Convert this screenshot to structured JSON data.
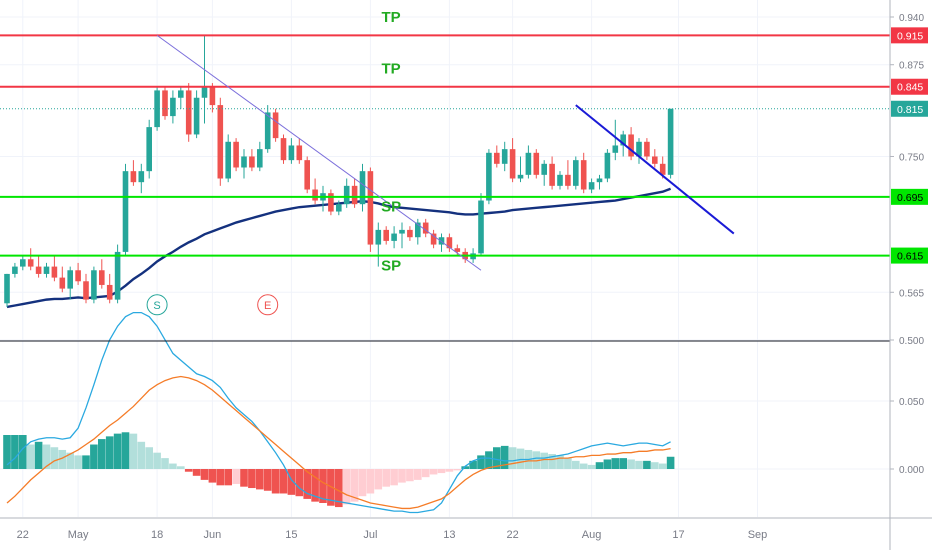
{
  "chart_data": [
    {
      "type": "candlestick",
      "title": "",
      "ylim": [
        0.5,
        0.95
      ],
      "y_ticks": [
        "0.940",
        "0.875",
        "0.750",
        "0.565",
        "0.500"
      ],
      "last_price": "0.815",
      "candles": [
        [
          0.55,
          0.59,
          0.545,
          0.59
        ],
        [
          0.59,
          0.605,
          0.585,
          0.6
        ],
        [
          0.6,
          0.615,
          0.595,
          0.61
        ],
        [
          0.61,
          0.625,
          0.595,
          0.6
        ],
        [
          0.6,
          0.615,
          0.585,
          0.59
        ],
        [
          0.59,
          0.605,
          0.585,
          0.6
        ],
        [
          0.6,
          0.615,
          0.58,
          0.585
        ],
        [
          0.585,
          0.6,
          0.565,
          0.57
        ],
        [
          0.57,
          0.6,
          0.555,
          0.595
        ],
        [
          0.595,
          0.605,
          0.575,
          0.58
        ],
        [
          0.58,
          0.59,
          0.55,
          0.555
        ],
        [
          0.555,
          0.6,
          0.55,
          0.595
        ],
        [
          0.595,
          0.61,
          0.57,
          0.575
        ],
        [
          0.575,
          0.59,
          0.55,
          0.555
        ],
        [
          0.555,
          0.63,
          0.55,
          0.62
        ],
        [
          0.62,
          0.74,
          0.615,
          0.73
        ],
        [
          0.73,
          0.745,
          0.71,
          0.715
        ],
        [
          0.715,
          0.74,
          0.7,
          0.73
        ],
        [
          0.73,
          0.8,
          0.72,
          0.79
        ],
        [
          0.79,
          0.845,
          0.785,
          0.84
        ],
        [
          0.84,
          0.845,
          0.8,
          0.805
        ],
        [
          0.805,
          0.84,
          0.795,
          0.83
        ],
        [
          0.83,
          0.845,
          0.815,
          0.84
        ],
        [
          0.84,
          0.85,
          0.77,
          0.78
        ],
        [
          0.78,
          0.84,
          0.775,
          0.83
        ],
        [
          0.83,
          0.915,
          0.795,
          0.845
        ],
        [
          0.845,
          0.85,
          0.81,
          0.82
        ],
        [
          0.82,
          0.83,
          0.71,
          0.72
        ],
        [
          0.72,
          0.78,
          0.715,
          0.77
        ],
        [
          0.77,
          0.775,
          0.73,
          0.735
        ],
        [
          0.735,
          0.76,
          0.72,
          0.75
        ],
        [
          0.75,
          0.76,
          0.73,
          0.735
        ],
        [
          0.735,
          0.77,
          0.73,
          0.76
        ],
        [
          0.76,
          0.82,
          0.755,
          0.81
        ],
        [
          0.81,
          0.815,
          0.77,
          0.775
        ],
        [
          0.775,
          0.78,
          0.74,
          0.745
        ],
        [
          0.745,
          0.775,
          0.74,
          0.765
        ],
        [
          0.765,
          0.775,
          0.74,
          0.745
        ],
        [
          0.745,
          0.75,
          0.7,
          0.705
        ],
        [
          0.705,
          0.72,
          0.685,
          0.69
        ],
        [
          0.69,
          0.71,
          0.675,
          0.7
        ],
        [
          0.7,
          0.705,
          0.67,
          0.675
        ],
        [
          0.675,
          0.69,
          0.67,
          0.685
        ],
        [
          0.685,
          0.72,
          0.68,
          0.71
        ],
        [
          0.71,
          0.72,
          0.68,
          0.685
        ],
        [
          0.685,
          0.74,
          0.675,
          0.73
        ],
        [
          0.73,
          0.735,
          0.62,
          0.63
        ],
        [
          0.63,
          0.66,
          0.6,
          0.65
        ],
        [
          0.65,
          0.655,
          0.63,
          0.635
        ],
        [
          0.635,
          0.655,
          0.625,
          0.645
        ],
        [
          0.645,
          0.66,
          0.625,
          0.65
        ],
        [
          0.65,
          0.655,
          0.635,
          0.64
        ],
        [
          0.64,
          0.665,
          0.63,
          0.66
        ],
        [
          0.66,
          0.665,
          0.64,
          0.645
        ],
        [
          0.645,
          0.65,
          0.625,
          0.63
        ],
        [
          0.63,
          0.645,
          0.62,
          0.64
        ],
        [
          0.64,
          0.645,
          0.62,
          0.625
        ],
        [
          0.625,
          0.63,
          0.615,
          0.62
        ],
        [
          0.62,
          0.625,
          0.605,
          0.61
        ],
        [
          0.61,
          0.625,
          0.605,
          0.618
        ],
        [
          0.618,
          0.7,
          0.615,
          0.69
        ],
        [
          0.69,
          0.76,
          0.685,
          0.755
        ],
        [
          0.755,
          0.765,
          0.735,
          0.74
        ],
        [
          0.74,
          0.77,
          0.73,
          0.76
        ],
        [
          0.76,
          0.775,
          0.715,
          0.72
        ],
        [
          0.72,
          0.75,
          0.715,
          0.725
        ],
        [
          0.725,
          0.765,
          0.72,
          0.755
        ],
        [
          0.755,
          0.76,
          0.72,
          0.725
        ],
        [
          0.725,
          0.745,
          0.71,
          0.74
        ],
        [
          0.74,
          0.75,
          0.705,
          0.71
        ],
        [
          0.71,
          0.73,
          0.705,
          0.725
        ],
        [
          0.725,
          0.745,
          0.705,
          0.71
        ],
        [
          0.71,
          0.75,
          0.705,
          0.745
        ],
        [
          0.745,
          0.755,
          0.7,
          0.705
        ],
        [
          0.705,
          0.72,
          0.7,
          0.715
        ],
        [
          0.715,
          0.725,
          0.705,
          0.72
        ],
        [
          0.72,
          0.76,
          0.715,
          0.755
        ],
        [
          0.755,
          0.8,
          0.745,
          0.765
        ],
        [
          0.765,
          0.785,
          0.75,
          0.78
        ],
        [
          0.78,
          0.79,
          0.745,
          0.75
        ],
        [
          0.75,
          0.775,
          0.74,
          0.77
        ],
        [
          0.77,
          0.775,
          0.745,
          0.75
        ],
        [
          0.75,
          0.76,
          0.735,
          0.74
        ],
        [
          0.74,
          0.75,
          0.72,
          0.725
        ],
        [
          0.725,
          0.815,
          0.72,
          0.815
        ]
      ],
      "moving_average": [
        0.545,
        0.547,
        0.549,
        0.551,
        0.553,
        0.555,
        0.556,
        0.556,
        0.557,
        0.558,
        0.557,
        0.558,
        0.559,
        0.56,
        0.566,
        0.574,
        0.583,
        0.59,
        0.598,
        0.607,
        0.614,
        0.62,
        0.627,
        0.633,
        0.638,
        0.644,
        0.648,
        0.652,
        0.656,
        0.66,
        0.663,
        0.666,
        0.669,
        0.672,
        0.675,
        0.677,
        0.679,
        0.681,
        0.682,
        0.683,
        0.684,
        0.685,
        0.686,
        0.687,
        0.688,
        0.689,
        0.688,
        0.686,
        0.683,
        0.681,
        0.68,
        0.679,
        0.678,
        0.677,
        0.676,
        0.675,
        0.674,
        0.672,
        0.671,
        0.671,
        0.672,
        0.673,
        0.674,
        0.675,
        0.677,
        0.678,
        0.679,
        0.68,
        0.681,
        0.682,
        0.683,
        0.684,
        0.685,
        0.686,
        0.687,
        0.688,
        0.689,
        0.69,
        0.692,
        0.694,
        0.696,
        0.698,
        0.7,
        0.702,
        0.706
      ],
      "horizontal_levels": [
        {
          "value": 0.915,
          "label": "0.915",
          "color": "#f23645"
        },
        {
          "value": 0.845,
          "label": "0.845",
          "color": "#f23645"
        },
        {
          "value": 0.695,
          "label": "0.695",
          "color": "#00e600"
        },
        {
          "value": 0.615,
          "label": "0.615",
          "color": "#00e600"
        }
      ],
      "annotations": [
        {
          "text": "TP",
          "price": 0.933,
          "candle": 49
        },
        {
          "text": "TP",
          "price": 0.863,
          "candle": 49
        },
        {
          "text": "SP",
          "price": 0.675,
          "candle": 49
        },
        {
          "text": "SP",
          "price": 0.595,
          "candle": 49
        }
      ],
      "trendlines": [
        {
          "from": [
            19,
            0.915
          ],
          "to": [
            60,
            0.595
          ],
          "color": "#7b6fdb"
        },
        {
          "from": [
            72,
            0.82
          ],
          "to": [
            92,
            0.645
          ],
          "color": "#1a1ad6"
        }
      ],
      "markers": [
        {
          "text": "S",
          "candle": 19,
          "price": 0.548,
          "color": "#26a69a"
        },
        {
          "text": "E",
          "candle": 33,
          "price": 0.548,
          "color": "#ef5350"
        }
      ]
    },
    {
      "type": "macd",
      "ylim": [
        -0.055,
        0.14
      ],
      "y_ticks": [
        "0.050",
        "0.000"
      ],
      "histogram": [
        0.025,
        0.025,
        0.025,
        0.018,
        0.02,
        0.018,
        0.016,
        0.014,
        0.012,
        0.01,
        0.01,
        0.018,
        0.022,
        0.024,
        0.026,
        0.027,
        0.026,
        0.02,
        0.016,
        0.012,
        0.008,
        0.004,
        0.002,
        -0.002,
        -0.005,
        -0.008,
        -0.01,
        -0.012,
        -0.012,
        -0.011,
        -0.013,
        -0.014,
        -0.015,
        -0.016,
        -0.018,
        -0.018,
        -0.019,
        -0.02,
        -0.022,
        -0.024,
        -0.025,
        -0.027,
        -0.028,
        -0.026,
        -0.024,
        -0.02,
        -0.018,
        -0.015,
        -0.013,
        -0.012,
        -0.01,
        -0.009,
        -0.008,
        -0.006,
        -0.004,
        -0.003,
        -0.002,
        -0.001,
        0.002,
        0.006,
        0.01,
        0.013,
        0.016,
        0.017,
        0.016,
        0.015,
        0.014,
        0.013,
        0.012,
        0.011,
        0.01,
        0.008,
        0.006,
        0.004,
        0.003,
        0.005,
        0.007,
        0.008,
        0.008,
        0.007,
        0.006,
        0.006,
        0.005,
        0.004,
        0.009
      ],
      "macd_line": [
        0.003,
        0.008,
        0.015,
        0.02,
        0.022,
        0.023,
        0.023,
        0.022,
        0.023,
        0.03,
        0.045,
        0.062,
        0.08,
        0.095,
        0.105,
        0.112,
        0.115,
        0.115,
        0.112,
        0.105,
        0.095,
        0.085,
        0.08,
        0.075,
        0.07,
        0.068,
        0.065,
        0.06,
        0.052,
        0.045,
        0.04,
        0.035,
        0.028,
        0.02,
        0.012,
        0.003,
        -0.008,
        -0.014,
        -0.018,
        -0.02,
        -0.022,
        -0.023,
        -0.024,
        -0.025,
        -0.026,
        -0.027,
        -0.028,
        -0.029,
        -0.03,
        -0.031,
        -0.031,
        -0.032,
        -0.032,
        -0.031,
        -0.03,
        -0.025,
        -0.015,
        -0.005,
        0.002,
        0.006,
        0.008,
        0.008,
        0.007,
        0.006,
        0.006,
        0.007,
        0.007,
        0.008,
        0.008,
        0.009,
        0.01,
        0.011,
        0.013,
        0.015,
        0.017,
        0.018,
        0.019,
        0.018,
        0.017,
        0.018,
        0.019,
        0.019,
        0.018,
        0.017,
        0.02
      ],
      "signal_line": [
        -0.025,
        -0.02,
        -0.014,
        -0.008,
        -0.003,
        0.002,
        0.006,
        0.008,
        0.011,
        0.014,
        0.018,
        0.022,
        0.027,
        0.032,
        0.036,
        0.041,
        0.046,
        0.052,
        0.058,
        0.062,
        0.065,
        0.067,
        0.068,
        0.067,
        0.065,
        0.062,
        0.058,
        0.053,
        0.048,
        0.043,
        0.038,
        0.033,
        0.028,
        0.023,
        0.018,
        0.013,
        0.008,
        0.003,
        -0.002,
        -0.006,
        -0.01,
        -0.013,
        -0.016,
        -0.019,
        -0.021,
        -0.023,
        -0.025,
        -0.026,
        -0.027,
        -0.028,
        -0.029,
        -0.029,
        -0.028,
        -0.026,
        -0.024,
        -0.022,
        -0.018,
        -0.013,
        -0.008,
        -0.004,
        -0.001,
        0.001,
        0.002,
        0.003,
        0.004,
        0.005,
        0.006,
        0.006,
        0.007,
        0.007,
        0.008,
        0.008,
        0.009,
        0.009,
        0.01,
        0.01,
        0.011,
        0.011,
        0.012,
        0.012,
        0.013,
        0.013,
        0.014,
        0.014,
        0.015
      ]
    }
  ],
  "x_axis": {
    "labels": [
      {
        "text": "22",
        "candle": 2
      },
      {
        "text": "May",
        "candle": 9
      },
      {
        "text": "18",
        "candle": 19
      },
      {
        "text": "Jun",
        "candle": 26
      },
      {
        "text": "15",
        "candle": 36
      },
      {
        "text": "Jul",
        "candle": 46
      },
      {
        "text": "13",
        "candle": 56
      },
      {
        "text": "22",
        "candle": 64
      },
      {
        "text": "Aug",
        "candle": 74
      },
      {
        "text": "17",
        "candle": 85
      },
      {
        "text": "Sep",
        "candle": 95
      }
    ]
  },
  "colors": {
    "up": "#26a69a",
    "down": "#ef5350",
    "moving_average": "#14317e",
    "macd_line": "#2aa9e0",
    "signal_line": "#f57c28",
    "hist_up_strong": "#26a69a",
    "hist_up_weak": "#b2dfdb",
    "hist_down_strong": "#ef5350",
    "hist_down_weak": "#ffcdd2",
    "annotation": "#22aa22"
  }
}
